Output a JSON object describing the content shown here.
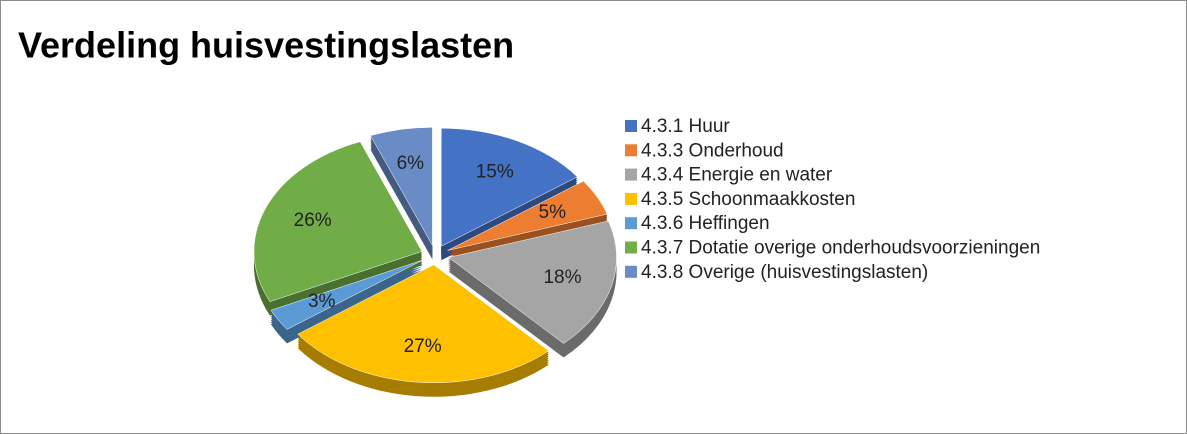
{
  "chart_data": {
    "type": "pie",
    "title": "Verdeling huisvestingslasten",
    "categories": [
      "4.3.1 Huur",
      "4.3.3 Onderhoud",
      "4.3.4 Energie en water",
      "4.3.5 Schoonmaakkosten",
      "4.3.6 Heffingen",
      "4.3.7 Dotatie overige onderhoudsvoorzieningen",
      "4.3.8 Overige (huisvestingslasten)"
    ],
    "values": [
      15,
      5,
      18,
      27,
      3,
      26,
      6
    ],
    "value_labels": [
      "15%",
      "5%",
      "18%",
      "27%",
      "3%",
      "26%",
      "6%"
    ],
    "colors": [
      "#4472c4",
      "#ed7d31",
      "#a5a5a5",
      "#ffc000",
      "#5b9bd5",
      "#70ad47",
      "#6a8cc6"
    ],
    "legend": "right"
  }
}
